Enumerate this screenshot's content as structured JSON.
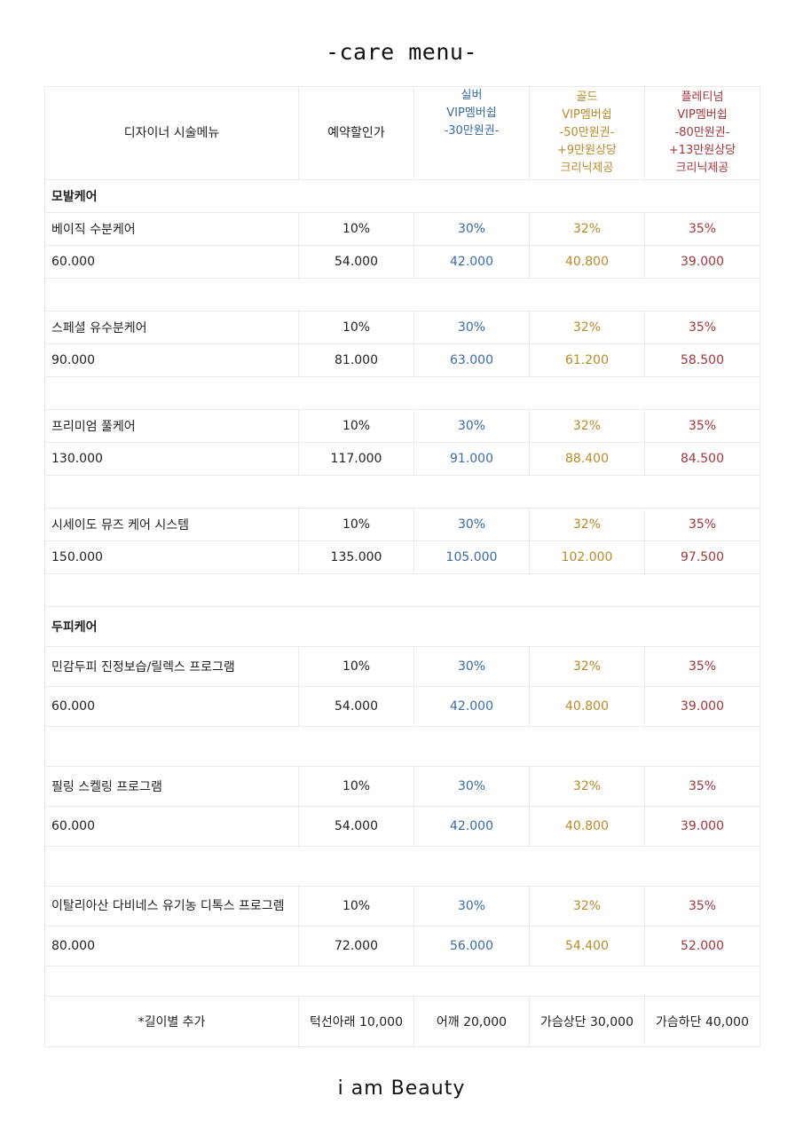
{
  "title": "-care menu-",
  "footer": "i am Beauty",
  "header": {
    "menu": "디자이너 시술메뉴",
    "reserve": "예약할인가",
    "silver": [
      "실버",
      "VIP멤버쉽",
      "-30만원권-"
    ],
    "gold": [
      "골드",
      "VIP멤버쉽",
      "-50만원권-",
      "+9만원상당",
      "크리닉제공"
    ],
    "platinum": [
      "플레티넘",
      "VIP멤버쉽",
      "-80만원권-",
      "+13만원상당",
      "크리닉제공"
    ]
  },
  "colors": {
    "silver": "#3b6ba5",
    "gold": "#b98a2b",
    "platinum": "#a2373b"
  },
  "sections": [
    {
      "category": "모발케어",
      "items": [
        {
          "name": "베이직 수분케어",
          "rates": [
            "10%",
            "30%",
            "32%",
            "35%"
          ],
          "prices": [
            "60.000",
            "54.000",
            "42.000",
            "40.800",
            "39.000"
          ]
        },
        {
          "name": "스페셜 유수분케어",
          "rates": [
            "10%",
            "30%",
            "32%",
            "35%"
          ],
          "prices": [
            "90.000",
            "81.000",
            "63.000",
            "61.200",
            "58.500"
          ]
        },
        {
          "name": "프리미엄 풀케어",
          "rates": [
            "10%",
            "30%",
            "32%",
            "35%"
          ],
          "prices": [
            "130.000",
            "117.000",
            "91.000",
            "88.400",
            "84.500"
          ]
        },
        {
          "name": "시세이도 뮤즈 케어 시스템",
          "rates": [
            "10%",
            "30%",
            "32%",
            "35%"
          ],
          "prices": [
            "150.000",
            "135.000",
            "105.000",
            "102.000",
            "97.500"
          ]
        }
      ]
    },
    {
      "category": "두피케어",
      "items": [
        {
          "name": "민감두피 진정보습/릴렉스 프로그램",
          "rates": [
            "10%",
            "30%",
            "32%",
            "35%"
          ],
          "prices": [
            "60.000",
            "54.000",
            "42.000",
            "40.800",
            "39.000"
          ]
        },
        {
          "name": "필링 스켈링 프로그램",
          "rates": [
            "10%",
            "30%",
            "32%",
            "35%"
          ],
          "prices": [
            "60.000",
            "54.000",
            "42.000",
            "40.800",
            "39.000"
          ]
        },
        {
          "name": "이탈리아산 다비네스 유기농 디톡스 프로그렘",
          "rates": [
            "10%",
            "30%",
            "32%",
            "35%"
          ],
          "prices": [
            "80.000",
            "72.000",
            "56.000",
            "54.400",
            "52.000"
          ]
        }
      ]
    }
  ],
  "length_extra": {
    "label": "*길이별 추가",
    "options": [
      "턱선아래 10,000",
      "어깨 20,000",
      "가슴상단 30,000",
      "가슴하단 40,000"
    ]
  }
}
